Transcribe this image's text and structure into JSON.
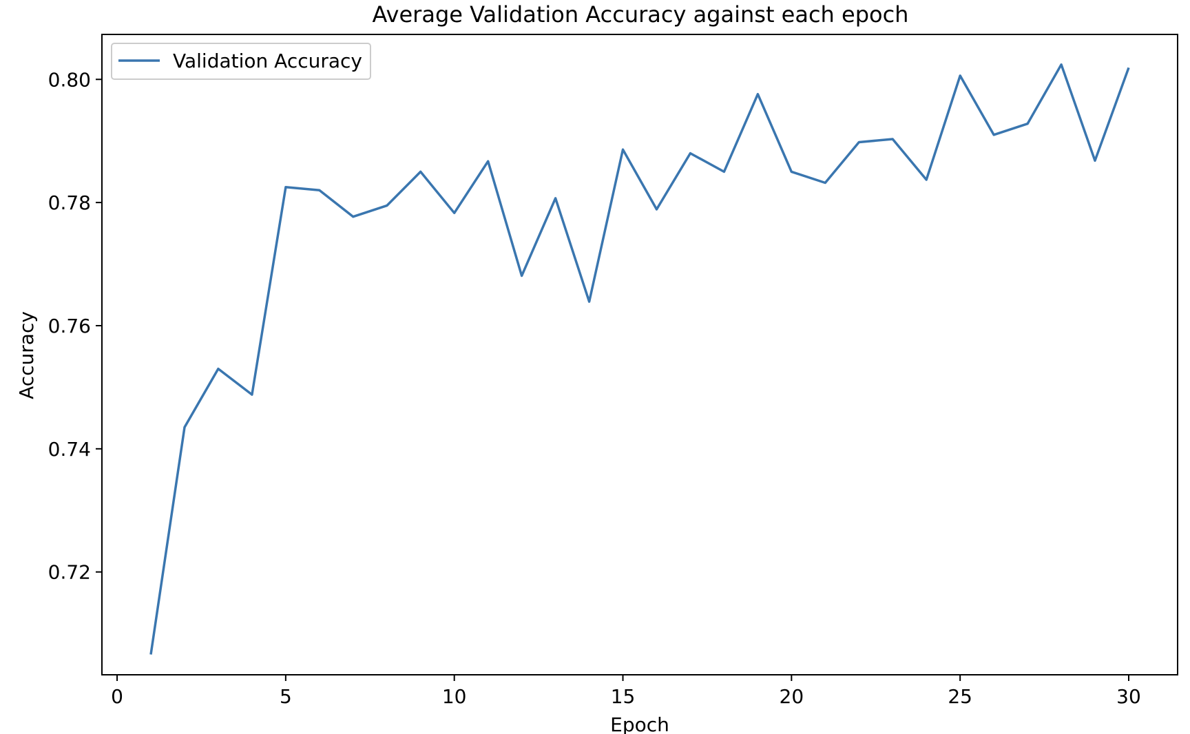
{
  "chart_data": {
    "type": "line",
    "title": "Average Validation Accuracy against each epoch",
    "xlabel": "Epoch",
    "ylabel": "Accuracy",
    "xlim": [
      -0.45,
      31.45
    ],
    "ylim": [
      0.7033,
      0.8073
    ],
    "x_ticks": [
      0,
      5,
      10,
      15,
      20,
      25,
      30
    ],
    "y_ticks": [
      0.72,
      0.74,
      0.76,
      0.78,
      0.8
    ],
    "x_tick_labels": [
      "0",
      "5",
      "10",
      "15",
      "20",
      "25",
      "30"
    ],
    "y_tick_labels": [
      "0.72",
      "0.74",
      "0.76",
      "0.78",
      "0.80"
    ],
    "grid": false,
    "legend_position": "top-left",
    "series": [
      {
        "name": "Validation Accuracy",
        "color": "#3a76af",
        "x": [
          1,
          2,
          3,
          4,
          5,
          6,
          7,
          8,
          9,
          10,
          11,
          12,
          13,
          14,
          15,
          16,
          17,
          18,
          19,
          20,
          21,
          22,
          23,
          24,
          25,
          26,
          27,
          28,
          29,
          30
        ],
        "y": [
          0.7066,
          0.7435,
          0.753,
          0.7488,
          0.7825,
          0.782,
          0.7777,
          0.7795,
          0.785,
          0.7783,
          0.7867,
          0.7681,
          0.7807,
          0.7639,
          0.7886,
          0.7789,
          0.788,
          0.785,
          0.7976,
          0.785,
          0.7832,
          0.7898,
          0.7903,
          0.7837,
          0.8006,
          0.791,
          0.7928,
          0.8024,
          0.7868,
          0.8019
        ]
      }
    ]
  }
}
